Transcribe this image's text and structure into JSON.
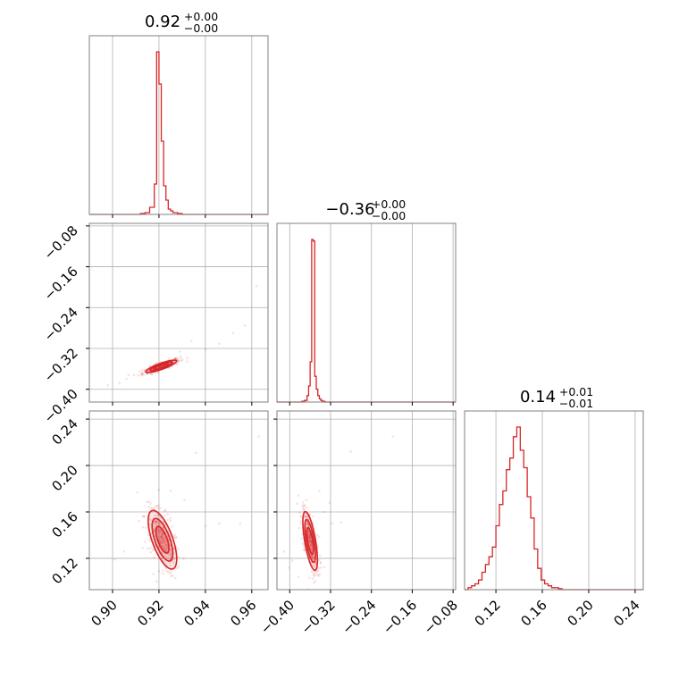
{
  "chart_data": {
    "type": "scatter",
    "kind": "corner-plot",
    "color": "#d62728",
    "grid": true,
    "parameters": [
      {
        "index": 0,
        "title": {
          "median": "0.92",
          "plus": "+0.00",
          "minus": "−0.00"
        },
        "range": [
          0.89,
          0.967
        ],
        "ticks": [
          "0.90",
          "0.92",
          "0.94",
          "0.96"
        ],
        "tick_values": [
          0.9,
          0.92,
          0.94,
          0.96
        ]
      },
      {
        "index": 1,
        "title": {
          "median": "−0.36",
          "plus": "+0.00",
          "minus": "−0.00"
        },
        "range": [
          -0.425,
          -0.075
        ],
        "ticks": [
          "−0.40",
          "−0.32",
          "−0.24",
          "−0.16",
          "−0.08"
        ],
        "tick_values": [
          -0.4,
          -0.32,
          -0.24,
          -0.16,
          -0.08
        ]
      },
      {
        "index": 2,
        "title": {
          "median": "0.14",
          "plus": "+0.01",
          "minus": "−0.01"
        },
        "range": [
          0.093,
          0.247
        ],
        "ticks": [
          "0.12",
          "0.16",
          "0.20",
          "0.24"
        ],
        "tick_values": [
          0.12,
          0.16,
          0.2,
          0.24
        ]
      }
    ],
    "histograms": [
      {
        "param": 0,
        "bin_edges": [
          0.912,
          0.914,
          0.916,
          0.918,
          0.919,
          0.92,
          0.921,
          0.922,
          0.923,
          0.924,
          0.925,
          0.926,
          0.928,
          0.93
        ],
        "counts": [
          0.5,
          1,
          4,
          17,
          91,
          73,
          41,
          16,
          8,
          3,
          2,
          1,
          0.5
        ]
      },
      {
        "param": 1,
        "bin_edges": [
          -0.376,
          -0.371,
          -0.366,
          -0.363,
          -0.36,
          -0.357,
          -0.354,
          -0.351,
          -0.348,
          -0.345,
          -0.342,
          -0.339,
          -0.336,
          -0.331
        ],
        "counts": [
          0.5,
          1,
          4,
          10,
          25,
          101,
          100,
          16,
          8,
          4,
          2,
          1,
          0.5
        ]
      },
      {
        "param": 2,
        "bin_edges": [
          0.093,
          0.096,
          0.099,
          0.102,
          0.105,
          0.108,
          0.111,
          0.114,
          0.117,
          0.12,
          0.123,
          0.126,
          0.129,
          0.132,
          0.135,
          0.138,
          0.141,
          0.144,
          0.147,
          0.15,
          0.153,
          0.156,
          0.159,
          0.162,
          0.165,
          0.168,
          0.171,
          0.174,
          0.177,
          0.18
        ],
        "counts": [
          0,
          1,
          2,
          3,
          5,
          9,
          13,
          17,
          22,
          33,
          44,
          51,
          62,
          68,
          79,
          84,
          72,
          63,
          48,
          37,
          21,
          11,
          5,
          3,
          2,
          1,
          1,
          0.5,
          0
        ]
      }
    ],
    "pairs": [
      {
        "x_param": 0,
        "y_param": 1,
        "center": [
          0.921,
          -0.355
        ],
        "sigma": [
          0.003,
          0.0055
        ],
        "corr": 0.85,
        "contour_levels": [
          1.0,
          1.6,
          2.2
        ],
        "outliers": [
          [
            0.957,
            -0.275
          ],
          [
            0.962,
            -0.198
          ],
          [
            0.934,
            -0.305
          ],
          [
            0.929,
            -0.326
          ],
          [
            0.946,
            -0.311
          ],
          [
            0.952,
            -0.29
          ],
          [
            0.911,
            -0.373
          ],
          [
            0.906,
            -0.38
          ],
          [
            0.903,
            -0.388
          ],
          [
            0.915,
            -0.369
          ],
          [
            0.898,
            -0.392
          ],
          [
            0.94,
            -0.322
          ]
        ]
      },
      {
        "x_param": 0,
        "y_param": 2,
        "center": [
          0.9215,
          0.136
        ],
        "sigma": [
          0.0028,
          0.0115
        ],
        "corr": -0.65,
        "contour_levels": [
          1.0,
          1.6,
          2.2
        ],
        "outliers": [
          [
            0.925,
            0.178
          ],
          [
            0.94,
            0.148
          ],
          [
            0.936,
            0.211
          ],
          [
            0.963,
            0.225
          ],
          [
            0.946,
            0.15
          ],
          [
            0.955,
            0.15
          ],
          [
            0.926,
            0.105
          ],
          [
            0.928,
            0.112
          ],
          [
            0.905,
            0.126
          ],
          [
            0.901,
            0.119
          ],
          [
            0.931,
            0.17
          ],
          [
            0.919,
            0.1
          ]
        ]
      },
      {
        "x_param": 1,
        "y_param": 2,
        "center": [
          -0.36,
          0.135
        ],
        "sigma": [
          0.0065,
          0.0115
        ],
        "corr": -0.65,
        "contour_levels": [
          1.0,
          1.6,
          2.2
        ],
        "outliers": [
          [
            -0.342,
            0.178
          ],
          [
            -0.299,
            0.151
          ],
          [
            -0.322,
            0.168
          ],
          [
            -0.28,
            0.212
          ],
          [
            -0.198,
            0.225
          ],
          [
            -0.333,
            0.16
          ],
          [
            -0.402,
            0.112
          ],
          [
            -0.411,
            0.126
          ],
          [
            -0.383,
            0.104
          ],
          [
            -0.353,
            0.099
          ],
          [
            -0.317,
            0.15
          ],
          [
            -0.395,
            0.118
          ]
        ]
      }
    ]
  }
}
